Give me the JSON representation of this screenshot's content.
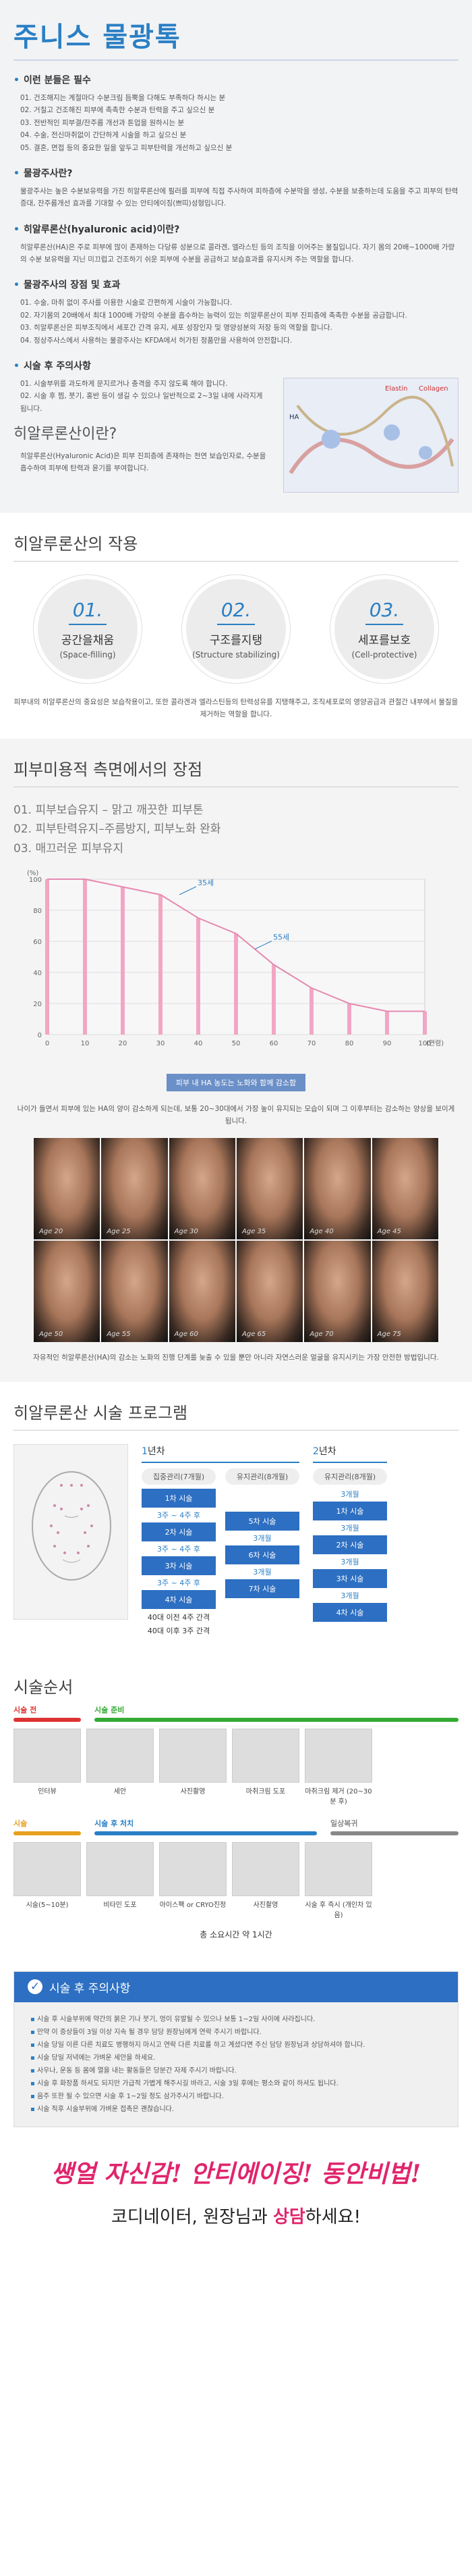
{
  "title": "주니스 물광톡",
  "features": {
    "heading": "이런 분들은 필수",
    "items": [
      "01. 건조해지는 계절마다 수분크림 듬뿍을 다해도 부족하다 하시는 분",
      "02. 거칠고 건조해진 피부에 촉촉한 수분과 탄력을 주고 싶으신 분",
      "03. 전반적인 피부결/잔주름 개선과 톤업을 원하시는 분",
      "04. 수술, 전신마취없이 간단하게 시술을 하고 싶으신 분",
      "05. 결혼, 면접 등의 중요한 일을 앞두고 피부탄력을 개선하고 싶으신 분"
    ]
  },
  "what": {
    "heading": "물광주사란?",
    "text": "물광주사는 높은 수분보유력을 가진 히알루론산에 필러를 피부에 직접 주사하여 피하층에 수분막을 생성, 수분을 보충하는데 도움을 주고 피부의 탄력증대, 잔주름개선 효과를 기대할 수 있는 안티에이징(쁘띠)성형입니다."
  },
  "ha": {
    "heading": "히알루론산(hyaluronic acid)이란?",
    "text": "히알루론산(HA)은 주로 피부에 많이 존재하는 다당류 성분으로 콜라겐, 엘라스틴 등의 조직을 이어주는 물질입니다. 자기 몸의 20배~1000배 가량의 수분 보유력을 지닌 미끄럽고 건조하기 쉬운 피부에 수분을 공급하고 보습효과를 유지시켜 주는 역할을 합니다."
  },
  "merits": {
    "heading": "물광주사의 장점 및 효과",
    "items": [
      "01. 수술, 마취 없이 주사를 이용한 시술로 간편하게 시술이 가능합니다.",
      "02. 자기몸의 20배에서 최대 1000배 가량의 수분을 흡수하는 능력이 있는 히알루론산이 피부 진피층에 촉촉한 수분을 공급합니다.",
      "03. 히알루론산은 피부조직에서 세포간 간격 유지, 세포 성장인자 및 영양성분의 저장 등의 역할을 합니다.",
      "04. 정상주사스에서 사용하는 물광주사는 KFDA에서 허가된 정품만을 사용하여 안전합니다."
    ]
  },
  "aftercare": {
    "heading": "시술 후 주의사항",
    "items": [
      "01. 시술부위를 과도하게 문지르거나 충격을 주지 않도록 해야 합니다.",
      "02. 시술 후 찜, 붓기, 홍반 등이 생길 수 있으나 일반적으로 2~3일 내에 사라지게 됩니다."
    ]
  },
  "ha_intro": {
    "big": "히알루론산이란?",
    "text": "히알루론산(Hyaluronic Acid)은 피부 진피층에 존재하는 천연 보습인자로, 수분을 흡수하여 피부에 탄력과 윤기를 부여합니다.",
    "img_label1": "Elastin",
    "img_label2": "Collagen",
    "img_label3": "HA"
  },
  "action": {
    "title": "히알루론산의 작용",
    "circles": [
      {
        "num": "01.",
        "t1": "공간을채움",
        "t2": "(Space-filling)"
      },
      {
        "num": "02.",
        "t1": "구조를지탱",
        "t2": "(Structure stabilizing)"
      },
      {
        "num": "03.",
        "t1": "세포를보호",
        "t2": "(Cell-protective)"
      }
    ],
    "desc": "피부내의 히알루론산의 중요성은 보습작용이고, 또한 콜라겐과 엘라스틴등의 탄력성유를 지탱해주고, 조직세포로의 영양공급과 관절간 내부에서 물질을 제거하는 역할을 합니다."
  },
  "advantages": {
    "title": "피부미용적 측면에서의 장점",
    "items": [
      "01. 피부보습유지 – 맑고 깨끗한 피부톤",
      "02. 피부탄력유지–주름방지, 피부노화 완화",
      "03. 매끄러운 피부유지"
    ]
  },
  "chart_data": {
    "type": "bar",
    "x": [
      0,
      10,
      20,
      30,
      40,
      50,
      60,
      70,
      80,
      90,
      100
    ],
    "values": [
      100,
      100,
      95,
      90,
      75,
      65,
      45,
      30,
      20,
      15,
      15
    ],
    "xlabel": "(연령)",
    "ylabel": "(%)",
    "ylim": [
      0,
      100
    ],
    "yticks": [
      "100",
      "80",
      "60",
      "40",
      "20",
      "0"
    ],
    "xticks": [
      "0",
      "10",
      "20",
      "30",
      "40",
      "50",
      "60",
      "70",
      "80",
      "90",
      "100"
    ],
    "annotations": [
      {
        "label": "35세",
        "x": 35,
        "y": 90
      },
      {
        "label": "55세",
        "x": 55,
        "y": 55
      }
    ],
    "caption": "피부 내 HA 농도는 노화와 함께 감소함"
  },
  "aging": {
    "text": "나이가 들면서 피부에 있는 HA의 양이 감소하게 되는데, 보통 20~30대에서 가장 높이 유지되는 모습이 되며 그 이후부터는 감소하는 양상을 보이게 됩니다.",
    "faces": [
      "Age 20",
      "Age 25",
      "Age 30",
      "Age 35",
      "Age 40",
      "Age 45",
      "Age 50",
      "Age 55",
      "Age 60",
      "Age 65",
      "Age 70",
      "Age 75"
    ],
    "note": "자유적인 히알루론산(HA)의 감소는 노화의 진행 단계를 늦출 수 있을 뿐만 아니라 자연스러운 얼굴을 유지시키는 가장 안전한 방법입니다."
  },
  "program": {
    "title": "히알루론산 시술 프로그램",
    "year1": {
      "label_a": "1",
      "label_b": "년차"
    },
    "year2": {
      "label_a": "2",
      "label_b": "년차"
    },
    "col1": {
      "head": "집중관리(7개월)",
      "s1": "1차 시술",
      "a1": "3주 ~ 4주 후",
      "s2": "2차 시술",
      "a2": "3주 ~ 4주 후",
      "s3": "3차 시술",
      "a3": "3주 ~ 4주 후",
      "s4": "4차 시술",
      "n1": "40대 이전 4주 간격",
      "n2": "40대 이후 3주 간격"
    },
    "col2": {
      "head": "유지관리(8개월)",
      "s5": "5차 시술",
      "a5": "3개월",
      "s6": "6차 시술",
      "a6": "3개월",
      "s7": "7차 시술"
    },
    "col3": {
      "head": "유지관리(8개월)",
      "a0": "3개월",
      "s1": "1차 시술",
      "a1": "3개월",
      "s2": "2차 시술",
      "a2": "3개월",
      "s3": "3차 시술",
      "a3": "3개월",
      "s4": "4차 시술"
    }
  },
  "procedure": {
    "title": "시술순서",
    "row1": {
      "bar1": "시술 전",
      "bar2": "시술 준비",
      "steps": [
        "인터뷰",
        "세안",
        "사진촬영",
        "마취크림 도포",
        "마취크림 제거\n(20~30분 후)"
      ]
    },
    "row2": {
      "bar1": "시술",
      "bar2": "시술 후 처치",
      "bar3": "일상복귀",
      "steps": [
        "시술(5~10분)",
        "비타민 도포",
        "아이스팩 or CRYO진정",
        "사진촬영",
        "시술 후 즉시\n(개인차 있음)"
      ]
    },
    "total": "총 소요시간 약 1시간"
  },
  "caution": {
    "heading": "시술 후 주의사항",
    "items": [
      "시술 후 시술부위에 약간의 붉은 기나 붓기, 멍이 유발될 수 있으나 보통 1~2일 사이에 사라집니다.",
      "만약 이 증상들이 3일 이상 지속 될 경우 담당 원장님에게 연락 주시기 바랍니다.",
      "시술 당일 이른 다른 치료도 병행하지 마시고 연락 다른 치료를 하고 계셨다면 주신 담당 원장님과 상담하셔야 합니다.",
      "시술 당일 저녁에는 가벼운 세안을 하세요.",
      "사우나, 운동 등 몸에 열을 내는 활동들은 당분간 자제 주시기 바랍니다.",
      "시술 후 화장품 하셔도 되지만 가급적 가볍게 해주시길 바라고, 시술 3일 후에는 평소와 같이 하셔도 됩니다.",
      "음주 또한 될 수 있으면 시술 후 1~2일 정도 삼가주시기 바랍니다.",
      "시술 직후 시술부위에 가벼운 접촉은 괜찮습니다."
    ]
  },
  "slogan": "쌩얼 자신감! 안티에이징! 동안비법!",
  "contact": {
    "pre": "코디네이터, 원장님과 ",
    "pink": "상담",
    "post": "하세요!"
  }
}
